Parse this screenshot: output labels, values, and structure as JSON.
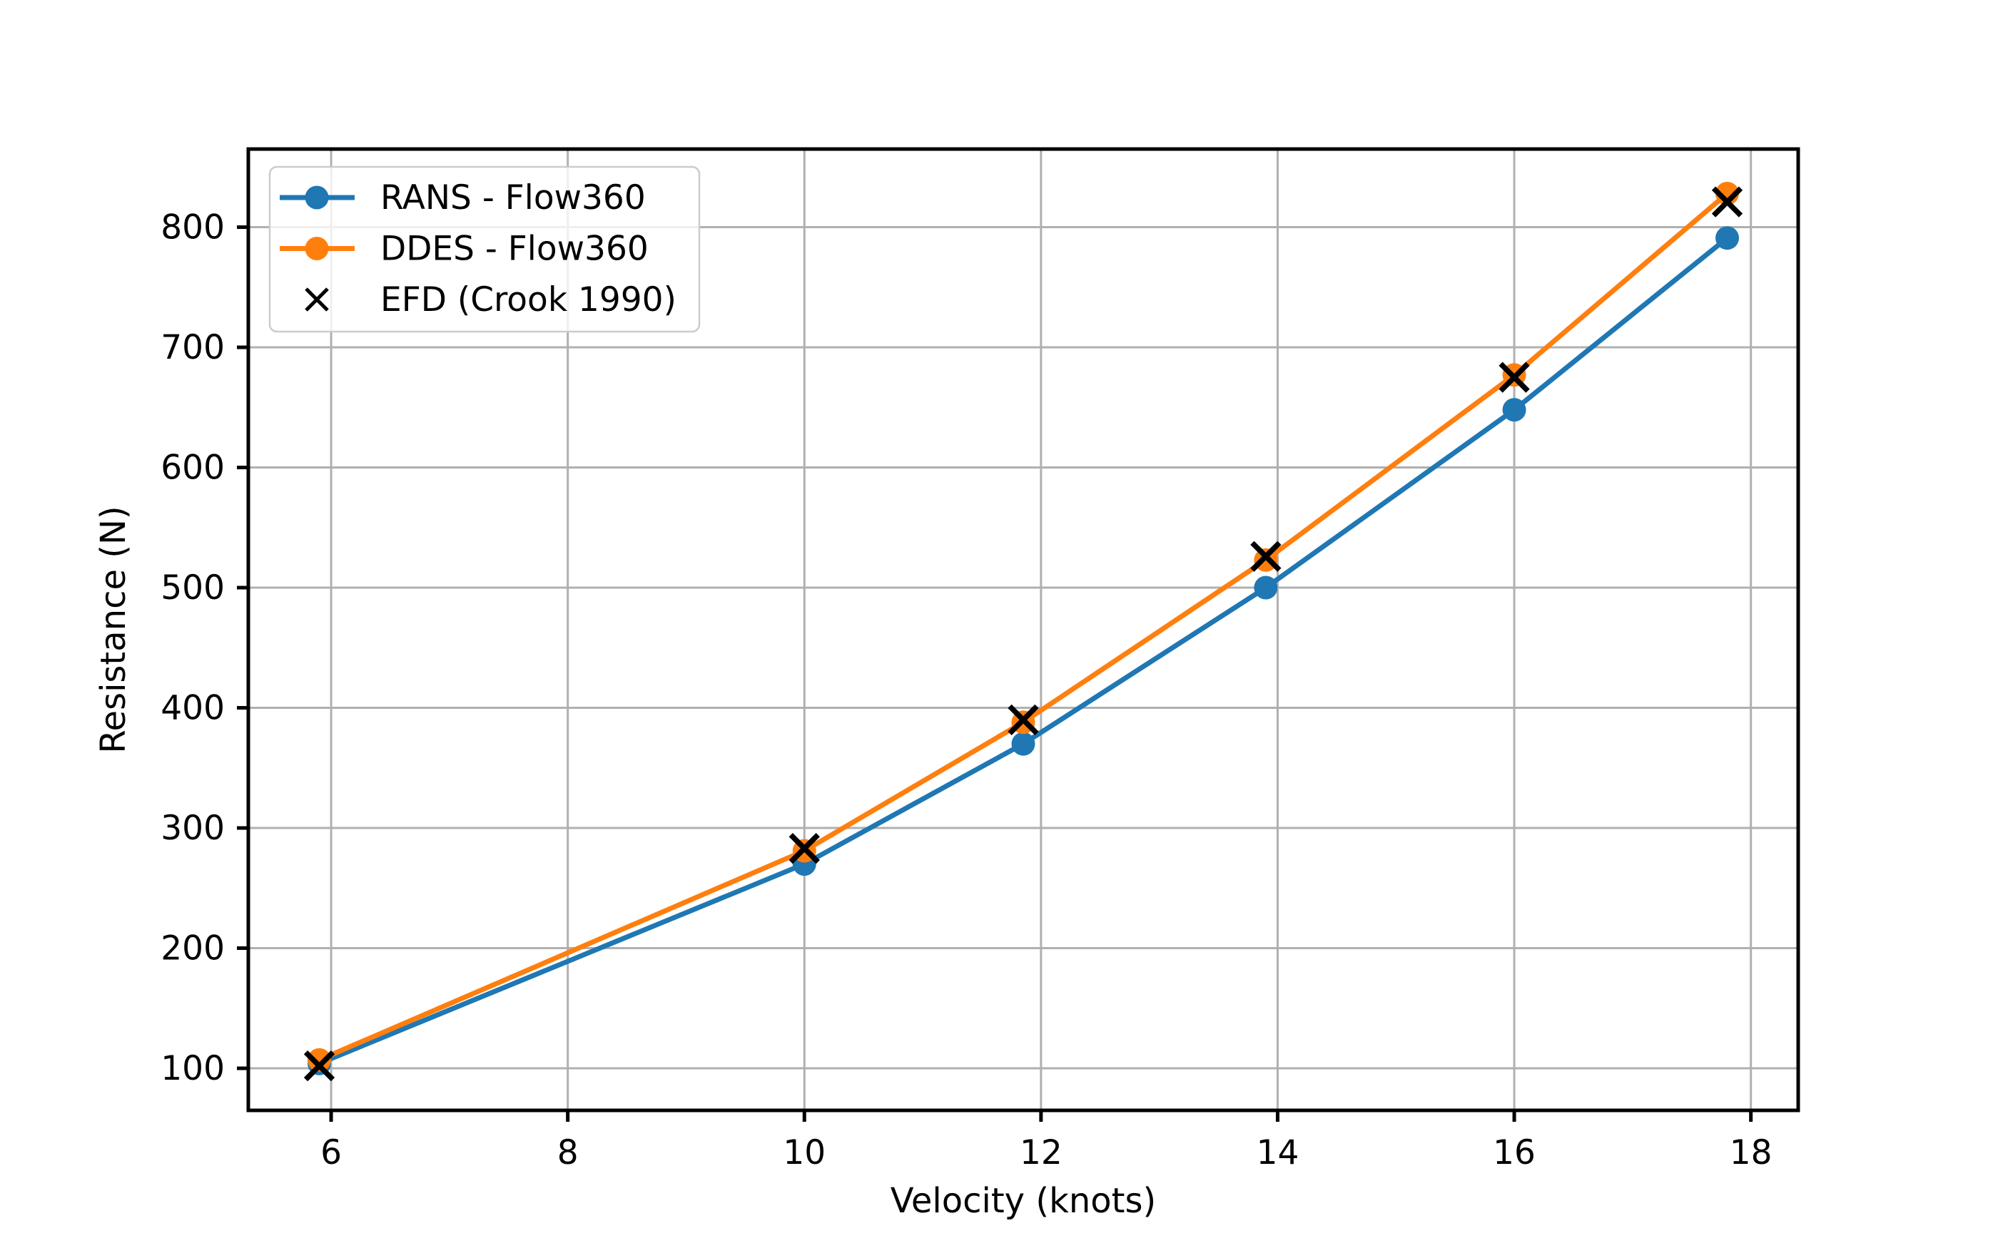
{
  "chart_data": {
    "type": "line",
    "title": "",
    "xlabel": "Velocity (knots)",
    "ylabel": "Resistance (N)",
    "x_ticks": [
      6,
      8,
      10,
      12,
      14,
      16,
      18
    ],
    "y_ticks": [
      100,
      200,
      300,
      400,
      500,
      600,
      700,
      800
    ],
    "xlim": [
      5.3,
      18.4
    ],
    "ylim": [
      65,
      865
    ],
    "grid": true,
    "legend_position": "upper-left",
    "x": [
      5.9,
      10.0,
      11.85,
      13.9,
      16.0,
      17.8
    ],
    "series": [
      {
        "name": "RANS - Flow360",
        "color": "#1f77b4",
        "marker": "circle",
        "line": true,
        "values": [
          104,
          270,
          370,
          500,
          648,
          791
        ]
      },
      {
        "name": "DDES - Flow360",
        "color": "#ff7f0e",
        "marker": "circle",
        "line": true,
        "values": [
          107,
          281,
          388,
          523,
          677,
          828
        ]
      },
      {
        "name": "EFD (Crook 1990)",
        "color": "#000000",
        "marker": "x",
        "line": false,
        "values": [
          102,
          283,
          390,
          526,
          675,
          821
        ]
      }
    ],
    "colors": {
      "background": "#ffffff",
      "grid": "#b0b0b0",
      "spine": "#000000",
      "tick_label": "#000000",
      "legend_border": "#cccccc",
      "legend_fill": "#ffffff"
    }
  }
}
